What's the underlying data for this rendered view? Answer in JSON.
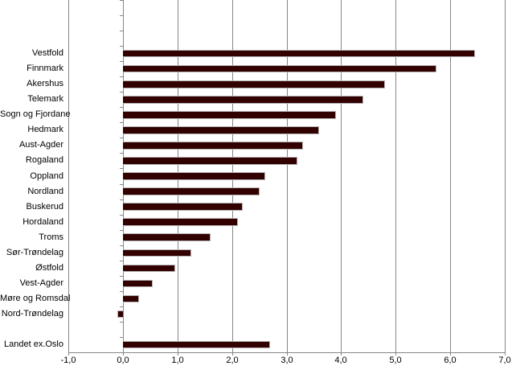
{
  "chart_data": {
    "type": "bar",
    "orientation": "horizontal",
    "title": "",
    "xlabel": "",
    "ylabel": "",
    "categories": [
      "Vestfold",
      "Finnmark",
      "Akershus",
      "Telemark",
      "Sogn og Fjordane",
      "Hedmark",
      "Aust-Agder",
      "Rogaland",
      "Oppland",
      "Nordland",
      "Buskerud",
      "Hordaland",
      "Troms",
      "Sør-Trøndelag",
      "Østfold",
      "Vest-Agder",
      "Møre og Romsdal",
      "Nord-Trøndelag",
      "Landet ex.Oslo"
    ],
    "values": [
      6.45,
      5.75,
      4.8,
      4.4,
      3.9,
      3.6,
      3.3,
      3.2,
      2.6,
      2.5,
      2.2,
      2.1,
      1.6,
      1.25,
      0.95,
      0.55,
      0.3,
      -0.1,
      2.7
    ],
    "xlim": [
      -1.0,
      7.0
    ],
    "xticks": {
      "values": [
        -1,
        0,
        1,
        2,
        3,
        4,
        5,
        6,
        7
      ],
      "labels": [
        "-1,0",
        "0,0",
        "1,0",
        "2,0",
        "3,0",
        "4,0",
        "5,0",
        "6,0",
        "7,0"
      ]
    },
    "grid": true,
    "legend": false,
    "colors": {
      "bar_fill": "#330000",
      "bar_edge": "#b3b3b3",
      "gridline": "#878787",
      "text": "#000000",
      "background": "#ffffff"
    },
    "layout_hints": {
      "empty_rows_top": 3,
      "separator_after_index": 17,
      "empty_rows_separator": 1
    }
  }
}
